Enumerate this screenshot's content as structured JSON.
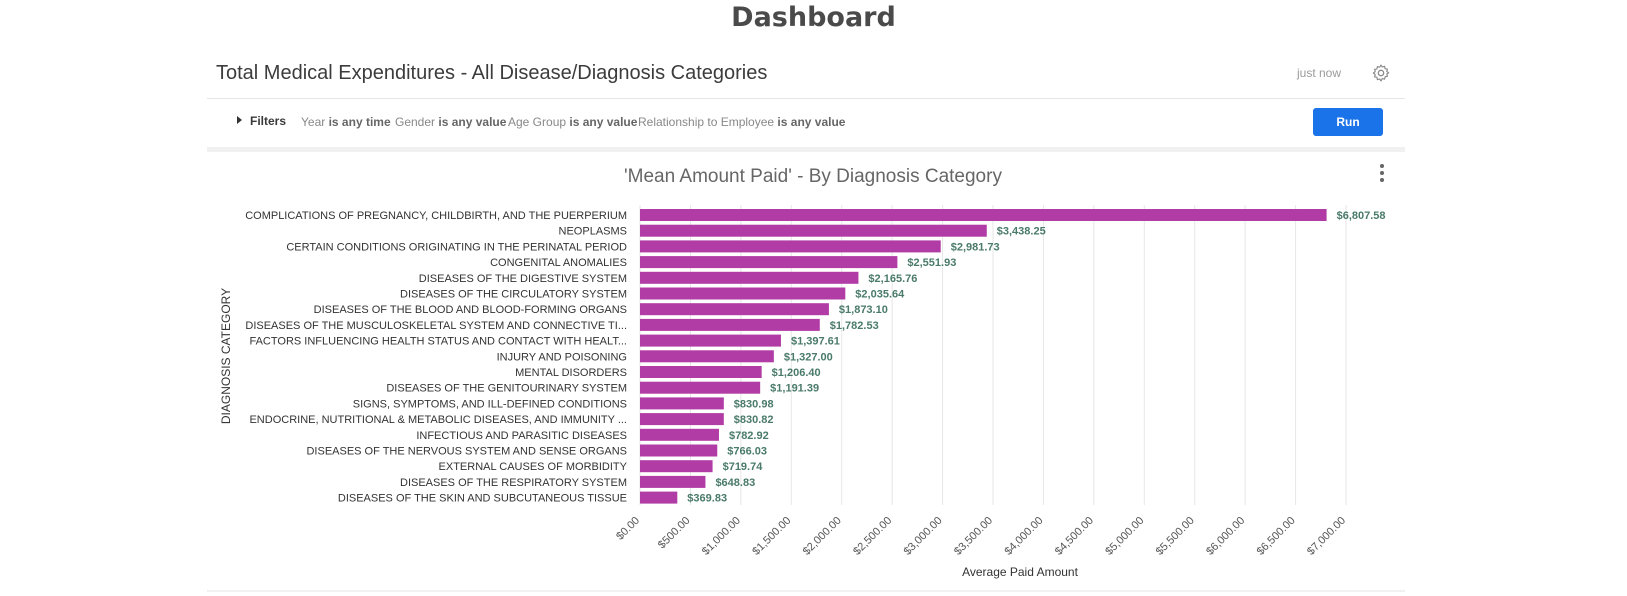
{
  "page": {
    "title": "Dashboard"
  },
  "tile": {
    "title": "Total Medical Expenditures - All Disease/Diagnosis Categories",
    "timestamp": "just now",
    "gear_icon": "gear-icon"
  },
  "filters": {
    "toggle_label": "Filters",
    "items": [
      {
        "field": "Year",
        "condition": "is any time"
      },
      {
        "field": "Gender",
        "condition": "is any value"
      },
      {
        "field": "Age Group",
        "condition": "is any value"
      },
      {
        "field": "Relationship to Employee",
        "condition": "is any value"
      }
    ],
    "run_label": "Run"
  },
  "chart_data": {
    "type": "bar",
    "orientation": "horizontal",
    "title": "'Mean Amount Paid' - By Diagnosis Category",
    "xlabel": "Average Paid Amount",
    "ylabel": "DIAGNOSIS CATEGORY",
    "xlim": [
      0,
      7000
    ],
    "x_ticks": [
      "$0.00",
      "$500.00",
      "$1,000.00",
      "$1,500.00",
      "$2,000.00",
      "$2,500.00",
      "$3,000.00",
      "$3,500.00",
      "$4,000.00",
      "$4,500.00",
      "$5,000.00",
      "$5,500.00",
      "$6,000.00",
      "$6,500.00",
      "$7,000.00"
    ],
    "grid": true,
    "bar_color": "#b13ca6",
    "label_color": "#4a7a6b",
    "categories": [
      "COMPLICATIONS OF PREGNANCY, CHILDBIRTH, AND THE PUERPERIUM",
      "NEOPLASMS",
      "CERTAIN CONDITIONS ORIGINATING IN THE PERINATAL PERIOD",
      "CONGENITAL ANOMALIES",
      "DISEASES OF THE DIGESTIVE SYSTEM",
      "DISEASES OF THE CIRCULATORY SYSTEM",
      "DISEASES OF THE BLOOD AND BLOOD-FORMING ORGANS",
      "DISEASES OF THE MUSCULOSKELETAL SYSTEM AND CONNECTIVE TI...",
      "FACTORS INFLUENCING HEALTH STATUS AND CONTACT WITH HEALT...",
      "INJURY AND POISONING",
      "MENTAL DISORDERS",
      "DISEASES OF THE GENITOURINARY SYSTEM",
      "SIGNS, SYMPTOMS, AND ILL-DEFINED CONDITIONS",
      "ENDOCRINE, NUTRITIONAL & METABOLIC DISEASES, AND IMMUNITY ...",
      "INFECTIOUS AND PARASITIC DISEASES",
      "DISEASES OF THE NERVOUS SYSTEM AND SENSE ORGANS",
      "EXTERNAL CAUSES OF MORBIDITY",
      "DISEASES OF THE RESPIRATORY SYSTEM",
      "DISEASES OF THE SKIN AND SUBCUTANEOUS TISSUE"
    ],
    "values": [
      6807.58,
      3438.25,
      2981.73,
      2551.93,
      2165.76,
      2035.64,
      1873.1,
      1782.53,
      1397.61,
      1327.0,
      1206.4,
      1191.39,
      830.98,
      830.82,
      782.92,
      766.03,
      719.74,
      648.83,
      369.83
    ],
    "value_labels": [
      "$6,807.58",
      "$3,438.25",
      "$2,981.73",
      "$2,551.93",
      "$2,165.76",
      "$2,035.64",
      "$1,873.10",
      "$1,782.53",
      "$1,397.61",
      "$1,327.00",
      "$1,206.40",
      "$1,191.39",
      "$830.98",
      "$830.82",
      "$782.92",
      "$766.03",
      "$719.74",
      "$648.83",
      "$369.83"
    ],
    "menu_icon": "vertical-ellipsis-icon"
  }
}
